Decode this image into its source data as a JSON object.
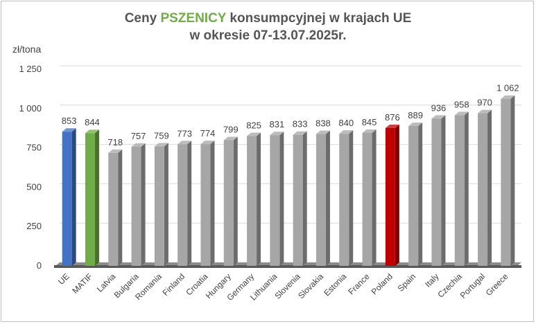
{
  "title": {
    "line1_before": "Ceny ",
    "line1_highlight": "PSZENICY",
    "line1_after": " konsumpcyjnej w krajach UE",
    "line2": "w okresie 07-13.07.2025r."
  },
  "colors": {
    "highlight": "#70ad47",
    "bar_default": "#a6a6a6",
    "bar_ue": "#4472c4",
    "bar_matif": "#70ad47",
    "bar_poland": "#c00000"
  },
  "chart_data": {
    "type": "bar",
    "title": "Ceny PSZENICY konsumpcyjnej w krajach UE w okresie 07-13.07.2025r.",
    "ylabel": "zł/tona",
    "xlabel": "",
    "ylim": [
      0,
      1250
    ],
    "yticks": [
      0,
      250,
      500,
      750,
      1000,
      1250
    ],
    "ytick_labels": [
      "0",
      "250",
      "500",
      "750",
      "1 000",
      "1 250"
    ],
    "grid": true,
    "categories": [
      "UE",
      "MATIF",
      "Latvia",
      "Bulgaria",
      "Romania",
      "Finland",
      "Croatia",
      "Hungary",
      "Germany",
      "Lithuania",
      "Slovenia",
      "Slovakia",
      "Estonia",
      "France",
      "Poland",
      "Spain",
      "Italy",
      "Czechia",
      "Portugal",
      "Greece"
    ],
    "values": [
      853,
      844,
      718,
      757,
      759,
      773,
      774,
      799,
      825,
      831,
      833,
      838,
      840,
      845,
      876,
      889,
      936,
      958,
      970,
      1062
    ],
    "value_labels": [
      "853",
      "844",
      "718",
      "757",
      "759",
      "773",
      "774",
      "799",
      "825",
      "831",
      "833",
      "838",
      "840",
      "845",
      "876",
      "889",
      "936",
      "958",
      "970",
      "1 062"
    ],
    "bar_colors": [
      "#4472c4",
      "#70ad47",
      "#a6a6a6",
      "#a6a6a6",
      "#a6a6a6",
      "#a6a6a6",
      "#a6a6a6",
      "#a6a6a6",
      "#a6a6a6",
      "#a6a6a6",
      "#a6a6a6",
      "#a6a6a6",
      "#a6a6a6",
      "#a6a6a6",
      "#c00000",
      "#a6a6a6",
      "#a6a6a6",
      "#a6a6a6",
      "#a6a6a6",
      "#a6a6a6"
    ]
  }
}
